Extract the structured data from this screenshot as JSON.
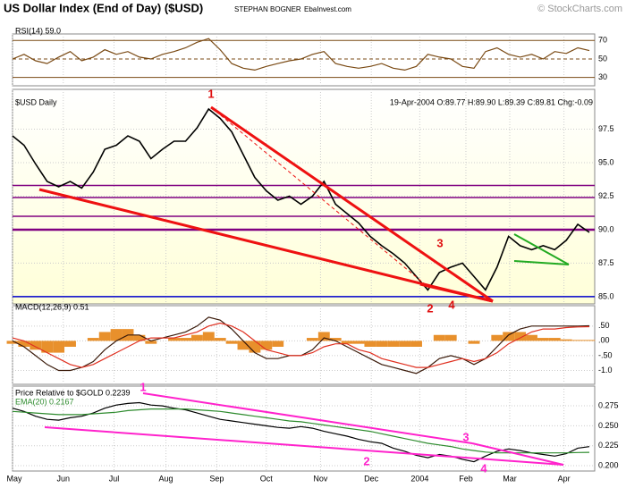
{
  "header": {
    "title": "US Dollar Index (End of Day) ($USD)",
    "author": "STEPHAN BOGNER",
    "site": "EbaInvest.com",
    "copyright": "© StockCharts.com"
  },
  "chart_data": [
    {
      "type": "line",
      "label": "RSI(14) 59.0",
      "xlim": [
        0,
        50
      ],
      "ylim": [
        21,
        77
      ],
      "yticks": [
        70,
        50,
        30
      ],
      "series": [
        {
          "color": "#7a4a14",
          "values": [
            50,
            55,
            48,
            45,
            52,
            58,
            48,
            52,
            60,
            55,
            58,
            52,
            50,
            55,
            58,
            62,
            68,
            72,
            60,
            45,
            40,
            38,
            42,
            45,
            48,
            50,
            55,
            58,
            45,
            42,
            40,
            42,
            45,
            40,
            38,
            42,
            55,
            52,
            50,
            42,
            40,
            58,
            62,
            55,
            52,
            55,
            50,
            58,
            56,
            62,
            59
          ]
        }
      ]
    },
    {
      "type": "line",
      "label": "$USD Daily",
      "subtitle": "19-Apr-2004 O:89.77 H:89.90 L:89.39 C:89.81 Chg:-0.09",
      "xlim": [
        0,
        50
      ],
      "ylim": [
        84.46,
        100.47
      ],
      "yticks": [
        97.5,
        {
          "value": 95,
          "label": "95.0"
        },
        92.5,
        {
          "value": 90,
          "label": "90.0"
        },
        87.5,
        {
          "value": 85,
          "label": "85.0"
        }
      ],
      "levels": [
        {
          "value": 93.3,
          "color": "#800080"
        },
        {
          "value": 92.4,
          "color": "#800080"
        },
        {
          "value": 91.0,
          "color": "#800080"
        },
        {
          "value": 90.0,
          "color": "#800080"
        },
        {
          "value": 85.0,
          "color": "#0000cc"
        }
      ],
      "annotations": [
        "1",
        "2",
        "3",
        "4"
      ],
      "series": [
        {
          "color": "#000000",
          "values": [
            97.0,
            96.3,
            94.9,
            93.6,
            93.2,
            93.6,
            93.1,
            94.3,
            96.0,
            96.3,
            97.0,
            96.6,
            95.3,
            96.0,
            96.6,
            96.6,
            97.6,
            99.0,
            98.3,
            97.3,
            95.6,
            93.9,
            92.9,
            92.2,
            92.5,
            91.9,
            92.5,
            93.6,
            91.9,
            91.2,
            90.5,
            89.5,
            88.8,
            88.2,
            87.5,
            86.5,
            85.5,
            86.8,
            87.2,
            87.5,
            86.5,
            85.5,
            87.2,
            89.5,
            88.8,
            88.5,
            88.8,
            88.5,
            89.2,
            90.4,
            89.8
          ]
        }
      ]
    },
    {
      "type": "line",
      "label": "MACD(12,26,9) 0.51",
      "xlim": [
        0,
        50
      ],
      "ylim": [
        -1.47,
        1.19
      ],
      "yticks": [
        {
          "value": 0.5,
          "label": ".50"
        },
        {
          "value": 0,
          "label": ".00"
        },
        {
          "value": -0.5,
          "label": "-.50"
        },
        {
          "value": -1.0,
          "label": "-1.0"
        }
      ],
      "histogram": {
        "color": "#e8902c",
        "values": [
          -0.1,
          -0.2,
          -0.3,
          -0.4,
          -0.4,
          -0.2,
          0.0,
          0.1,
          0.3,
          0.4,
          0.4,
          0.2,
          -0.1,
          0.0,
          0.1,
          0.1,
          0.2,
          0.3,
          0.1,
          -0.1,
          -0.3,
          -0.4,
          -0.3,
          -0.2,
          0.0,
          0.0,
          0.1,
          0.3,
          0.1,
          -0.1,
          -0.1,
          -0.2,
          -0.2,
          -0.2,
          -0.2,
          -0.2,
          0.0,
          0.2,
          0.2,
          0.0,
          -0.1,
          0.0,
          0.2,
          0.3,
          0.3,
          0.2,
          0.1,
          0.1,
          0.05,
          0.03,
          0.03
        ]
      },
      "series": [
        {
          "color": "#3a1a0a",
          "values": [
            0.0,
            -0.2,
            -0.5,
            -0.8,
            -1.0,
            -1.0,
            -0.9,
            -0.7,
            -0.3,
            0.0,
            0.2,
            0.2,
            0.0,
            0.1,
            0.2,
            0.3,
            0.5,
            0.8,
            0.7,
            0.4,
            0.0,
            -0.4,
            -0.6,
            -0.6,
            -0.5,
            -0.5,
            -0.3,
            0.1,
            0.0,
            -0.2,
            -0.4,
            -0.6,
            -0.8,
            -0.9,
            -1.0,
            -1.1,
            -0.9,
            -0.6,
            -0.5,
            -0.6,
            -0.8,
            -0.6,
            -0.2,
            0.2,
            0.4,
            0.5,
            0.5,
            0.5,
            0.5,
            0.5,
            0.51
          ]
        },
        {
          "color": "#e03020",
          "values": [
            0.1,
            0.0,
            -0.2,
            -0.4,
            -0.6,
            -0.8,
            -0.9,
            -0.8,
            -0.6,
            -0.4,
            -0.2,
            0.0,
            0.1,
            0.1,
            0.1,
            0.2,
            0.3,
            0.5,
            0.6,
            0.5,
            0.3,
            0.0,
            -0.3,
            -0.4,
            -0.5,
            -0.5,
            -0.4,
            -0.2,
            -0.1,
            -0.1,
            -0.3,
            -0.4,
            -0.6,
            -0.7,
            -0.8,
            -0.9,
            -0.9,
            -0.8,
            -0.7,
            -0.6,
            -0.7,
            -0.6,
            -0.4,
            -0.1,
            0.1,
            0.3,
            0.4,
            0.4,
            0.45,
            0.47,
            0.48
          ]
        }
      ]
    },
    {
      "type": "line",
      "xlim": [
        0,
        50
      ],
      "ylim": [
        0.1933,
        0.2997
      ],
      "yticks": [
        0.275,
        {
          "value": 0.25,
          "label": "0.250"
        },
        0.225,
        {
          "value": 0.2,
          "label": "0.200"
        }
      ],
      "xticks": [
        {
          "value": 0,
          "label": "May"
        },
        {
          "value": 4.4,
          "label": "Jun"
        },
        {
          "value": 8.8,
          "label": "Jul"
        },
        {
          "value": 13.3,
          "label": "Aug"
        },
        {
          "value": 17.7,
          "label": "Sep"
        },
        {
          "value": 22.0,
          "label": "Oct"
        },
        {
          "value": 26.7,
          "label": "Nov"
        },
        {
          "value": 31.1,
          "label": "Dec"
        },
        {
          "value": 35.3,
          "label": "2004"
        },
        {
          "value": 39.3,
          "label": "Feb"
        },
        {
          "value": 43.1,
          "label": "Mar"
        },
        {
          "value": 47.8,
          "label": "Apr"
        }
      ],
      "annotations": [
        "1",
        "2",
        "3",
        "4"
      ],
      "series": [
        {
          "name": "Price Relative to $GOLD 0.2239",
          "color": "#000000",
          "values": [
            0.272,
            0.268,
            0.262,
            0.258,
            0.257,
            0.26,
            0.262,
            0.266,
            0.272,
            0.276,
            0.278,
            0.279,
            0.276,
            0.275,
            0.272,
            0.27,
            0.266,
            0.262,
            0.258,
            0.256,
            0.254,
            0.252,
            0.25,
            0.248,
            0.247,
            0.249,
            0.247,
            0.243,
            0.24,
            0.237,
            0.233,
            0.23,
            0.228,
            0.222,
            0.218,
            0.213,
            0.21,
            0.214,
            0.212,
            0.208,
            0.205,
            0.212,
            0.218,
            0.221,
            0.219,
            0.216,
            0.214,
            0.212,
            0.215,
            0.222,
            0.2239
          ]
        },
        {
          "name": "EMA(20) 0.2167",
          "color": "#2e8b2e",
          "values": [
            0.268,
            0.267,
            0.266,
            0.265,
            0.264,
            0.264,
            0.264,
            0.265,
            0.266,
            0.267,
            0.269,
            0.27,
            0.271,
            0.271,
            0.271,
            0.271,
            0.27,
            0.269,
            0.268,
            0.266,
            0.264,
            0.262,
            0.26,
            0.258,
            0.256,
            0.255,
            0.253,
            0.251,
            0.249,
            0.247,
            0.245,
            0.243,
            0.24,
            0.237,
            0.234,
            0.231,
            0.228,
            0.226,
            0.224,
            0.221,
            0.219,
            0.217,
            0.216,
            0.216,
            0.216,
            0.216,
            0.216,
            0.216,
            0.216,
            0.2165,
            0.2167
          ]
        }
      ]
    }
  ]
}
